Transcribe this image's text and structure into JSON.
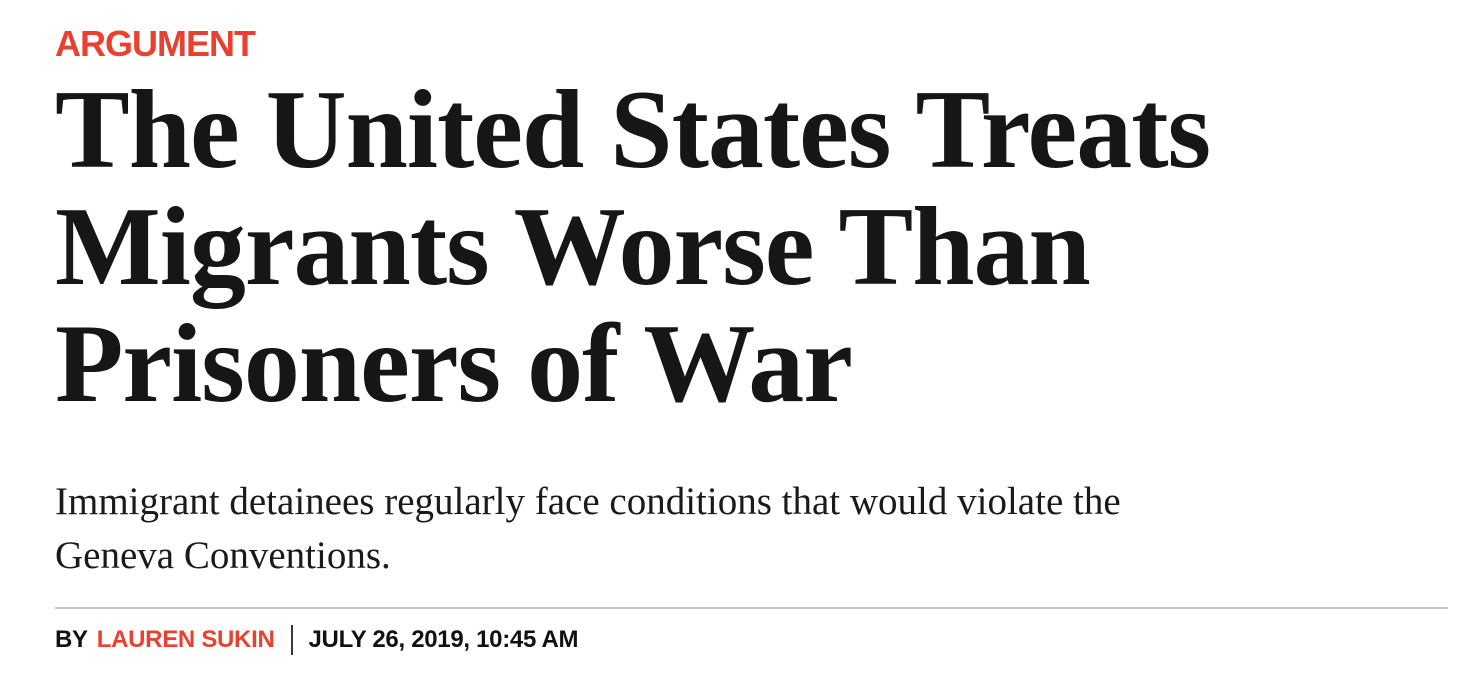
{
  "article": {
    "kicker": "ARGUMENT",
    "headline": "The United States Treats Migrants Worse Than Prisoners of War",
    "headline_lines": [
      "The United States Treats",
      "Migrants Worse Than",
      "Prisoners of War"
    ],
    "dek": "Immigrant detainees regularly face conditions that would violate the Geneva Conventions.",
    "dek_lines": [
      "Immigrant detainees regularly face conditions that would violate the",
      "Geneva Conventions."
    ],
    "byline": {
      "prefix": "BY",
      "author": "LAUREN SUKIN",
      "date": "JULY 26, 2019, 10:45 AM"
    }
  },
  "colors": {
    "accent_red": "#E8412F",
    "headline_black": "#161616",
    "body_black": "#1a1a1a",
    "divider_gray": "#c6c6c6",
    "background": "#ffffff"
  }
}
